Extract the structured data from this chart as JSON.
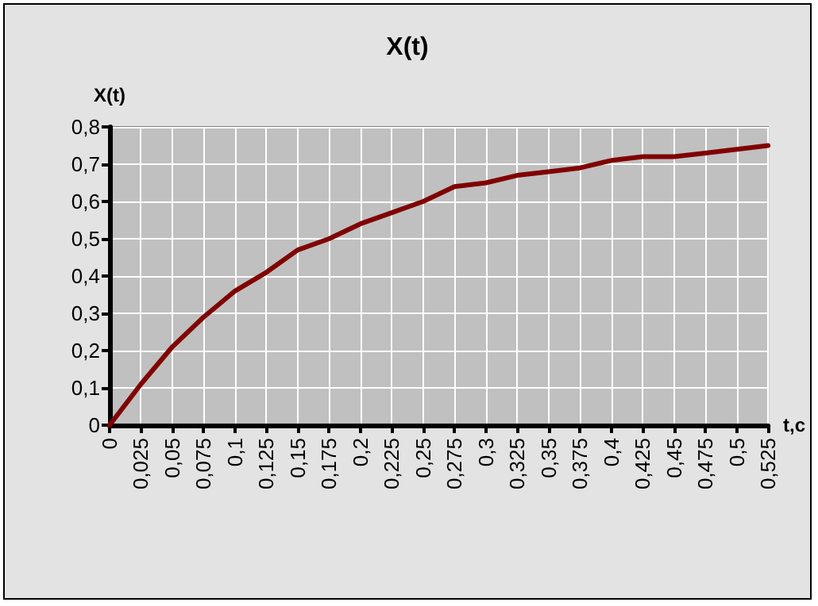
{
  "chart_data": {
    "type": "line",
    "title": "X(t)",
    "xlabel": "t,c",
    "ylabel": "X(t)",
    "categories": [
      "0",
      "0,025",
      "0,05",
      "0,075",
      "0,1",
      "0,125",
      "0,15",
      "0,175",
      "0,2",
      "0,225",
      "0,25",
      "0,275",
      "0,3",
      "0,325",
      "0,35",
      "0,375",
      "0,4",
      "0,425",
      "0,45",
      "0,475",
      "0,5",
      "0,525"
    ],
    "series": [
      {
        "color": "#800000",
        "values": [
          0,
          0.11,
          0.21,
          0.29,
          0.36,
          0.41,
          0.47,
          0.5,
          0.54,
          0.57,
          0.6,
          0.64,
          0.65,
          0.67,
          0.68,
          0.69,
          0.71,
          0.72,
          0.72,
          0.73,
          0.74,
          0.75
        ]
      }
    ],
    "ylim": [
      0,
      0.8
    ],
    "yticks": [
      {
        "value": 0,
        "label": "0"
      },
      {
        "value": 0.1,
        "label": "0,1"
      },
      {
        "value": 0.2,
        "label": "0,2"
      },
      {
        "value": 0.3,
        "label": "0,3"
      },
      {
        "value": 0.4,
        "label": "0,4"
      },
      {
        "value": 0.5,
        "label": "0,5"
      },
      {
        "value": 0.6,
        "label": "0,6"
      },
      {
        "value": 0.7,
        "label": "0,7"
      },
      {
        "value": 0.8,
        "label": "0,8"
      }
    ],
    "grid": true
  }
}
